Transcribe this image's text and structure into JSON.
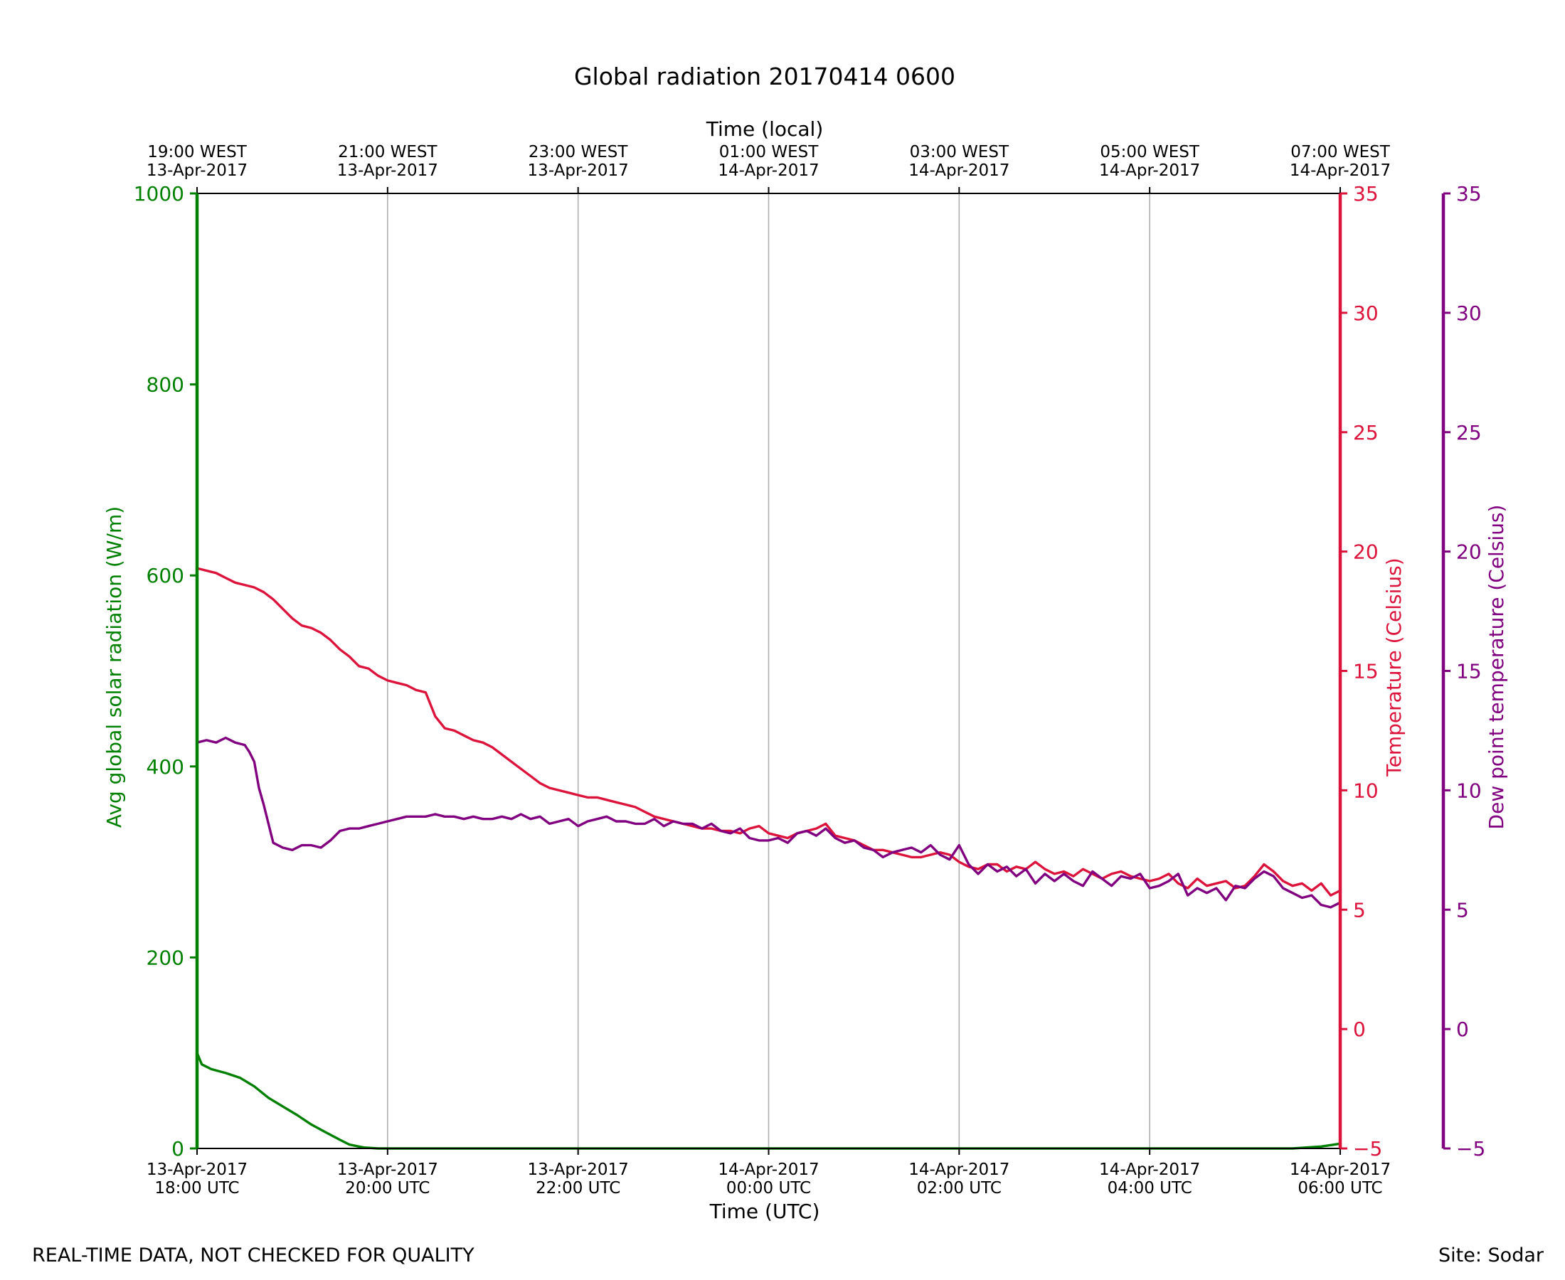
{
  "footer": {
    "quality_note": "REAL-TIME DATA, NOT CHECKED FOR QUALITY",
    "site": "Site: Sodar"
  },
  "chart_data": {
    "type": "line",
    "title": "Global radiation 20170414 0600",
    "xlabel": "Time (UTC)",
    "xlabel_top": "Time (local)",
    "x_range_hours": [
      0,
      12
    ],
    "x_ticks": [
      {
        "hour": 0,
        "line1": "13-Apr-2017",
        "line2": "18:00 UTC"
      },
      {
        "hour": 2,
        "line1": "13-Apr-2017",
        "line2": "20:00 UTC"
      },
      {
        "hour": 4,
        "line1": "13-Apr-2017",
        "line2": "22:00 UTC"
      },
      {
        "hour": 6,
        "line1": "14-Apr-2017",
        "line2": "00:00 UTC"
      },
      {
        "hour": 8,
        "line1": "14-Apr-2017",
        "line2": "02:00 UTC"
      },
      {
        "hour": 10,
        "line1": "14-Apr-2017",
        "line2": "04:00 UTC"
      },
      {
        "hour": 12,
        "line1": "14-Apr-2017",
        "line2": "06:00 UTC"
      }
    ],
    "x_ticks_top": [
      {
        "hour": 0,
        "line1": "19:00 WEST",
        "line2": "13-Apr-2017"
      },
      {
        "hour": 2,
        "line1": "21:00 WEST",
        "line2": "13-Apr-2017"
      },
      {
        "hour": 4,
        "line1": "23:00 WEST",
        "line2": "13-Apr-2017"
      },
      {
        "hour": 6,
        "line1": "01:00 WEST",
        "line2": "14-Apr-2017"
      },
      {
        "hour": 8,
        "line1": "03:00 WEST",
        "line2": "14-Apr-2017"
      },
      {
        "hour": 10,
        "line1": "05:00 WEST",
        "line2": "14-Apr-2017"
      },
      {
        "hour": 12,
        "line1": "07:00 WEST",
        "line2": "14-Apr-2017"
      }
    ],
    "grid": "vertical",
    "axes": [
      {
        "id": "radiation",
        "label": "Avg global solar radiation (W/m)",
        "side": "left",
        "ylim": [
          0,
          1000
        ],
        "ticks": [
          0,
          200,
          400,
          600,
          800,
          1000
        ],
        "color": "#008000"
      },
      {
        "id": "temperature",
        "label": "Temperature (Celsius)",
        "side": "right",
        "ylim": [
          -5,
          35
        ],
        "ticks": [
          -5,
          0,
          5,
          10,
          15,
          20,
          25,
          30,
          35
        ],
        "color": "#dc143c"
      },
      {
        "id": "dewpoint",
        "label": "Dew point temperature (Celsius)",
        "side": "right-outer",
        "ylim": [
          -5,
          35
        ],
        "ticks": [
          -5,
          0,
          5,
          10,
          15,
          20,
          25,
          30,
          35
        ],
        "color": "#800080"
      }
    ],
    "series": [
      {
        "axis": "radiation",
        "color": "#008000",
        "x": [
          0,
          0.05,
          0.15,
          0.3,
          0.45,
          0.6,
          0.75,
          0.9,
          1.05,
          1.2,
          1.35,
          1.5,
          1.6,
          1.75,
          1.9,
          2.0,
          3,
          4,
          5,
          6,
          7,
          8,
          9,
          10,
          11,
          11.5,
          11.8,
          12
        ],
        "values": [
          100,
          88,
          83,
          79,
          74,
          65,
          53,
          44,
          35,
          25,
          17,
          9,
          4,
          1,
          0,
          0,
          0,
          0,
          0,
          0,
          0,
          0,
          0,
          0,
          0,
          0,
          2,
          5
        ]
      },
      {
        "axis": "temperature",
        "color": "#dc143c",
        "x": [
          0,
          0.1,
          0.2,
          0.3,
          0.4,
          0.5,
          0.6,
          0.7,
          0.8,
          0.9,
          1.0,
          1.1,
          1.2,
          1.3,
          1.4,
          1.5,
          1.6,
          1.7,
          1.8,
          1.9,
          2.0,
          2.1,
          2.2,
          2.3,
          2.4,
          2.5,
          2.6,
          2.7,
          2.8,
          2.9,
          3.0,
          3.1,
          3.2,
          3.3,
          3.4,
          3.5,
          3.6,
          3.7,
          3.8,
          3.9,
          4.0,
          4.1,
          4.2,
          4.3,
          4.4,
          4.5,
          4.6,
          4.7,
          4.8,
          4.9,
          5.0,
          5.1,
          5.2,
          5.3,
          5.4,
          5.5,
          5.6,
          5.7,
          5.8,
          5.9,
          6.0,
          6.1,
          6.2,
          6.3,
          6.4,
          6.5,
          6.6,
          6.7,
          6.8,
          6.9,
          7.0,
          7.1,
          7.2,
          7.3,
          7.4,
          7.5,
          7.6,
          7.7,
          7.8,
          7.9,
          8.0,
          8.1,
          8.2,
          8.3,
          8.4,
          8.5,
          8.6,
          8.7,
          8.8,
          8.9,
          9.0,
          9.1,
          9.2,
          9.3,
          9.4,
          9.5,
          9.6,
          9.7,
          9.8,
          9.9,
          10.0,
          10.1,
          10.2,
          10.3,
          10.4,
          10.5,
          10.6,
          10.7,
          10.8,
          10.9,
          11.0,
          11.1,
          11.2,
          11.3,
          11.4,
          11.5,
          11.6,
          11.7,
          11.8,
          11.9,
          12.0
        ],
        "values": [
          19.3,
          19.2,
          19.1,
          18.9,
          18.7,
          18.6,
          18.5,
          18.3,
          18.0,
          17.6,
          17.2,
          16.9,
          16.8,
          16.6,
          16.3,
          15.9,
          15.6,
          15.2,
          15.1,
          14.8,
          14.6,
          14.5,
          14.4,
          14.2,
          14.1,
          13.1,
          12.6,
          12.5,
          12.3,
          12.1,
          12.0,
          11.8,
          11.5,
          11.2,
          10.9,
          10.6,
          10.3,
          10.1,
          10.0,
          9.9,
          9.8,
          9.7,
          9.7,
          9.6,
          9.5,
          9.4,
          9.3,
          9.1,
          8.9,
          8.8,
          8.7,
          8.6,
          8.5,
          8.4,
          8.4,
          8.3,
          8.3,
          8.2,
          8.4,
          8.5,
          8.2,
          8.1,
          8.0,
          8.2,
          8.3,
          8.4,
          8.6,
          8.1,
          8.0,
          7.9,
          7.7,
          7.5,
          7.5,
          7.4,
          7.3,
          7.2,
          7.2,
          7.3,
          7.4,
          7.3,
          7.0,
          6.8,
          6.7,
          6.9,
          6.9,
          6.6,
          6.8,
          6.7,
          7.0,
          6.7,
          6.5,
          6.6,
          6.4,
          6.7,
          6.5,
          6.3,
          6.5,
          6.6,
          6.4,
          6.3,
          6.2,
          6.3,
          6.5,
          6.1,
          5.9,
          6.3,
          6.0,
          6.1,
          6.2,
          5.9,
          6.0,
          6.4,
          6.9,
          6.6,
          6.2,
          6.0,
          6.1,
          5.8,
          6.1,
          5.6,
          5.8
        ]
      },
      {
        "axis": "dewpoint",
        "color": "#800080",
        "x": [
          0,
          0.1,
          0.2,
          0.3,
          0.4,
          0.5,
          0.55,
          0.6,
          0.65,
          0.7,
          0.8,
          0.9,
          1.0,
          1.1,
          1.2,
          1.3,
          1.4,
          1.5,
          1.6,
          1.7,
          1.8,
          1.9,
          2.0,
          2.1,
          2.2,
          2.3,
          2.4,
          2.5,
          2.6,
          2.7,
          2.8,
          2.9,
          3.0,
          3.1,
          3.2,
          3.3,
          3.4,
          3.5,
          3.6,
          3.7,
          3.8,
          3.9,
          4.0,
          4.1,
          4.2,
          4.3,
          4.4,
          4.5,
          4.6,
          4.7,
          4.8,
          4.9,
          5.0,
          5.1,
          5.2,
          5.3,
          5.4,
          5.5,
          5.6,
          5.7,
          5.8,
          5.9,
          6.0,
          6.1,
          6.2,
          6.3,
          6.4,
          6.5,
          6.6,
          6.7,
          6.8,
          6.9,
          7.0,
          7.1,
          7.2,
          7.3,
          7.4,
          7.5,
          7.6,
          7.7,
          7.8,
          7.9,
          8.0,
          8.1,
          8.2,
          8.3,
          8.4,
          8.5,
          8.6,
          8.7,
          8.8,
          8.9,
          9.0,
          9.1,
          9.2,
          9.3,
          9.4,
          9.5,
          9.6,
          9.7,
          9.8,
          9.9,
          10.0,
          10.1,
          10.2,
          10.3,
          10.4,
          10.5,
          10.6,
          10.7,
          10.8,
          10.9,
          11.0,
          11.1,
          11.2,
          11.3,
          11.4,
          11.5,
          11.6,
          11.7,
          11.8,
          11.9,
          12.0
        ],
        "values": [
          12.0,
          12.1,
          12.0,
          12.2,
          12.0,
          11.9,
          11.6,
          11.2,
          10.1,
          9.4,
          7.8,
          7.6,
          7.5,
          7.7,
          7.7,
          7.6,
          7.9,
          8.3,
          8.4,
          8.4,
          8.5,
          8.6,
          8.7,
          8.8,
          8.9,
          8.9,
          8.9,
          9.0,
          8.9,
          8.9,
          8.8,
          8.9,
          8.8,
          8.8,
          8.9,
          8.8,
          9.0,
          8.8,
          8.9,
          8.6,
          8.7,
          8.8,
          8.5,
          8.7,
          8.8,
          8.9,
          8.7,
          8.7,
          8.6,
          8.6,
          8.8,
          8.5,
          8.7,
          8.6,
          8.6,
          8.4,
          8.6,
          8.3,
          8.2,
          8.4,
          8.0,
          7.9,
          7.9,
          8.0,
          7.8,
          8.2,
          8.3,
          8.1,
          8.4,
          8.0,
          7.8,
          7.9,
          7.6,
          7.5,
          7.2,
          7.4,
          7.5,
          7.6,
          7.4,
          7.7,
          7.3,
          7.1,
          7.7,
          6.9,
          6.5,
          6.9,
          6.6,
          6.8,
          6.4,
          6.7,
          6.1,
          6.5,
          6.2,
          6.5,
          6.2,
          6.0,
          6.6,
          6.3,
          6.0,
          6.4,
          6.3,
          6.5,
          5.9,
          6.0,
          6.2,
          6.5,
          5.6,
          5.9,
          5.7,
          5.9,
          5.4,
          6.0,
          5.9,
          6.3,
          6.6,
          6.4,
          5.9,
          5.7,
          5.5,
          5.6,
          5.2,
          5.1,
          5.3
        ]
      }
    ]
  }
}
